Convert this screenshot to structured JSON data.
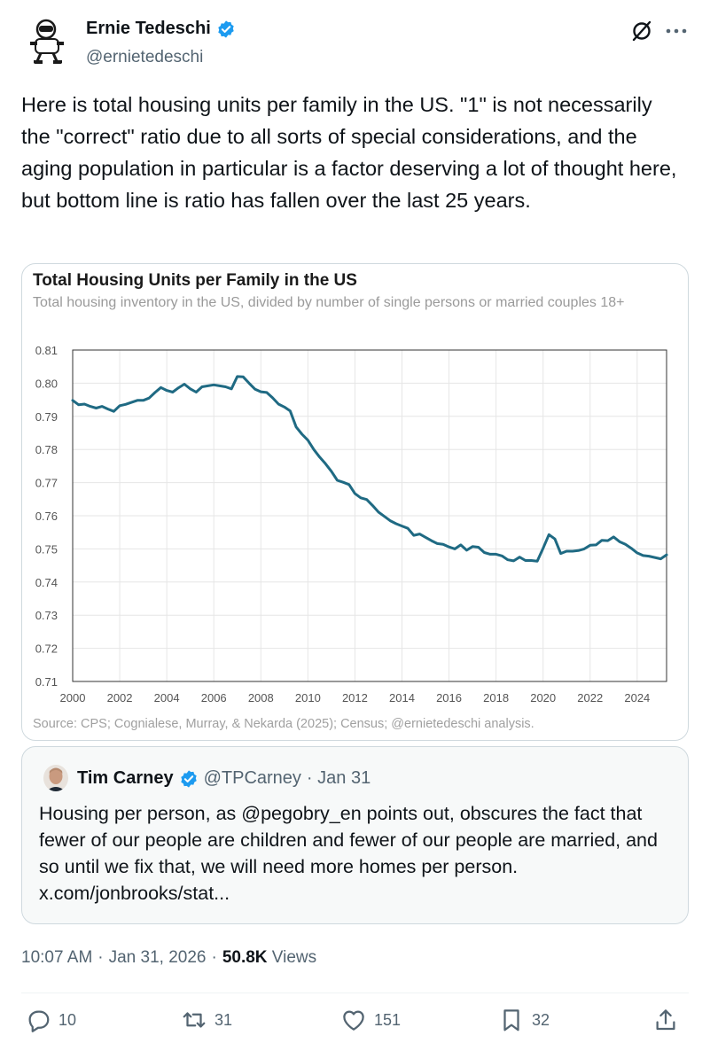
{
  "author": {
    "name": "Ernie Tedeschi",
    "handle": "@ernietedeschi"
  },
  "icons": {
    "verified": "verified-badge-icon",
    "grok": "grok-icon",
    "more": "more-options-icon"
  },
  "colors": {
    "verified": "#1d9bf0",
    "line": "#1f6a83",
    "muted": "#536471"
  },
  "tweet": {
    "text": "Here is total housing units per family in the US. \"1\" is not necessarily the \"correct\" ratio due to all sorts of special considerations, and the aging population in particular is a factor deserving a lot of thought here, but bottom line is ratio has fallen over the last 25 years."
  },
  "chart": {
    "title": "Total Housing Units per Family in the US",
    "subtitle": "Total housing inventory in the US, divided by number of single persons or married couples 18+",
    "source": "Source: CPS; Cognialese, Murray, & Nekarda (2025); Census; @ernietedeschi analysis."
  },
  "chart_data": {
    "type": "line",
    "title": "Total Housing Units per Family in the US",
    "xlabel": "",
    "ylabel": "",
    "xlim": [
      2000,
      2025.25
    ],
    "ylim": [
      0.71,
      0.81
    ],
    "x_ticks": [
      "2000",
      "2002",
      "2004",
      "2006",
      "2008",
      "2010",
      "2012",
      "2014",
      "2016",
      "2018",
      "2020",
      "2022",
      "2024"
    ],
    "y_ticks": [
      "0.81",
      "0.80",
      "0.79",
      "0.78",
      "0.77",
      "0.76",
      "0.75",
      "0.74",
      "0.73",
      "0.72",
      "0.71"
    ],
    "grid": true,
    "series": [
      {
        "name": "Housing units per family",
        "x": [
          2000,
          2000.25,
          2000.5,
          2000.75,
          2001,
          2001.25,
          2001.5,
          2001.75,
          2002,
          2002.25,
          2002.5,
          2002.75,
          2003,
          2003.25,
          2003.5,
          2003.75,
          2004,
          2004.25,
          2004.5,
          2004.75,
          2005,
          2005.25,
          2005.5,
          2005.75,
          2006,
          2006.25,
          2006.5,
          2006.75,
          2007,
          2007.25,
          2007.5,
          2007.75,
          2008,
          2008.25,
          2008.5,
          2008.75,
          2009,
          2009.25,
          2009.5,
          2009.75,
          2010,
          2010.25,
          2010.5,
          2010.75,
          2011,
          2011.25,
          2011.5,
          2011.75,
          2012,
          2012.25,
          2012.5,
          2012.75,
          2013,
          2013.25,
          2013.5,
          2013.75,
          2014,
          2014.25,
          2014.5,
          2014.75,
          2015,
          2015.25,
          2015.5,
          2015.75,
          2016,
          2016.25,
          2016.5,
          2016.75,
          2017,
          2017.25,
          2017.5,
          2017.75,
          2018,
          2018.25,
          2018.5,
          2018.75,
          2019,
          2019.25,
          2019.5,
          2019.75,
          2020,
          2020.25,
          2020.5,
          2020.75,
          2021,
          2021.25,
          2021.5,
          2021.75,
          2022,
          2022.25,
          2022.5,
          2022.75,
          2023,
          2023.25,
          2023.5,
          2023.75,
          2024,
          2024.25,
          2024.5,
          2024.75,
          2025,
          2025.25
        ],
        "values": [
          0.7948,
          0.7935,
          0.7937,
          0.793,
          0.7925,
          0.793,
          0.7922,
          0.7915,
          0.7932,
          0.7936,
          0.7942,
          0.7948,
          0.7948,
          0.7955,
          0.7972,
          0.7987,
          0.7978,
          0.7973,
          0.7986,
          0.7997,
          0.7983,
          0.7973,
          0.7989,
          0.7992,
          0.7995,
          0.7992,
          0.7989,
          0.7983,
          0.802,
          0.8019,
          0.8,
          0.7982,
          0.7974,
          0.7972,
          0.7956,
          0.7937,
          0.7928,
          0.7916,
          0.7868,
          0.7846,
          0.7828,
          0.78,
          0.7777,
          0.7757,
          0.7734,
          0.7707,
          0.7701,
          0.7694,
          0.7667,
          0.7654,
          0.7649,
          0.7631,
          0.7611,
          0.7598,
          0.7585,
          0.7576,
          0.7569,
          0.7562,
          0.7541,
          0.7545,
          0.7535,
          0.7525,
          0.7516,
          0.7514,
          0.7506,
          0.75,
          0.7512,
          0.7496,
          0.7507,
          0.7505,
          0.7489,
          0.7484,
          0.7484,
          0.7479,
          0.7467,
          0.7464,
          0.7475,
          0.7465,
          0.7465,
          0.7463,
          0.7502,
          0.7543,
          0.753,
          0.7486,
          0.7493,
          0.7493,
          0.7495,
          0.75,
          0.7511,
          0.7512,
          0.7526,
          0.7525,
          0.7536,
          0.7522,
          0.7514,
          0.7502,
          0.7488,
          0.748,
          0.7478,
          0.7474,
          0.747,
          0.7482
        ]
      }
    ]
  },
  "quote": {
    "name": "Tim Carney",
    "handle": "@TPCarney",
    "date": "· Jan 31",
    "text": "Housing per person, as @pegobry_en points out, obscures the fact that fewer of our people are children and fewer of our people are married, and so until we fix that, we will need more homes per person.",
    "link": "x.com/jonbrooks/stat..."
  },
  "meta": {
    "time": "10:07 AM",
    "sep1": "·",
    "date": "Jan 31, 2026",
    "sep2": "·",
    "views_count": "50.8K",
    "views_label": "Views"
  },
  "actions": {
    "replies": "10",
    "reposts": "31",
    "likes": "151",
    "bookmarks": "32"
  }
}
